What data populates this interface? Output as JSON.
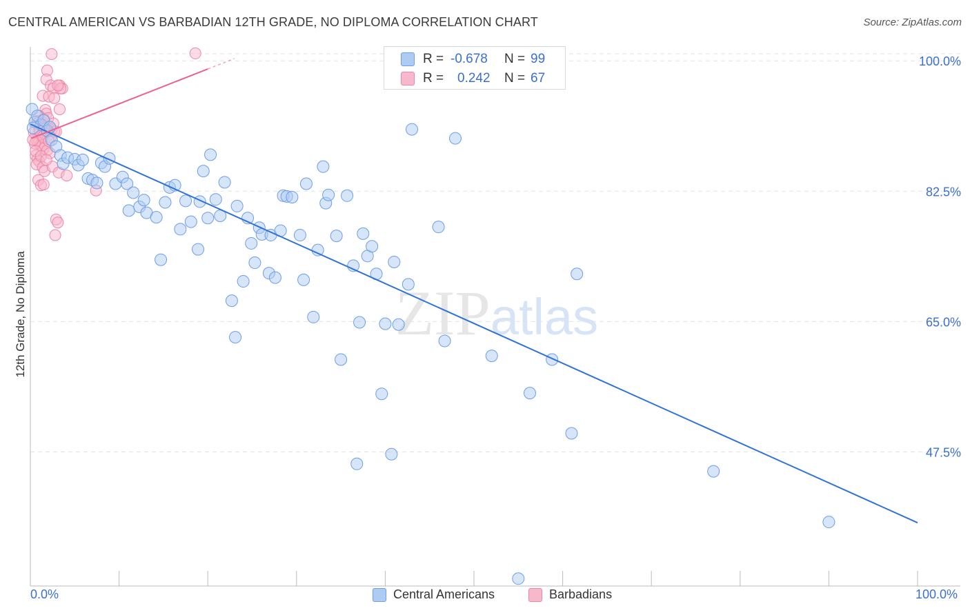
{
  "title": "CENTRAL AMERICAN VS BARBADIAN 12TH GRADE, NO DIPLOMA CORRELATION CHART",
  "source": "Source: ZipAtlas.com",
  "watermark": "ZIPatlas",
  "colors": {
    "blue_fill": "#aecbf2",
    "blue_stroke": "#6d9ee6",
    "blue_line": "#2f72d6",
    "pink_fill": "#f7b8cc",
    "pink_stroke": "#ee86a8",
    "pink_line": "#e8648f",
    "grid": "#e3e3e3",
    "tick_text": "#3a6fd0"
  },
  "legend": {
    "rows": [
      {
        "r_label": "R =",
        "r_value": "-0.678",
        "n_label": "N =",
        "n_value": "99"
      },
      {
        "r_label": "R =",
        "r_value": "0.242",
        "n_label": "N =",
        "n_value": "67"
      }
    ]
  },
  "bottom_legend": {
    "central": "Central Americans",
    "barbadian": "Barbadians"
  },
  "x_ticks": {
    "left": "0.0%",
    "right": "100.0%"
  },
  "chart_data": {
    "type": "scatter",
    "title": "CENTRAL AMERICAN VS BARBADIAN 12TH GRADE, NO DIPLOMA CORRELATION CHART",
    "xlabel": "",
    "ylabel": "12th Grade, No Diploma",
    "xlim": [
      0,
      100
    ],
    "ylim": [
      29.5,
      101.5
    ],
    "y_ticks": [
      {
        "value": 100.0,
        "label": "100.0%"
      },
      {
        "value": 82.5,
        "label": "82.5%"
      },
      {
        "value": 65.0,
        "label": "65.0%"
      },
      {
        "value": 47.5,
        "label": "47.5%"
      }
    ],
    "grid": true,
    "legend_position": "top-center",
    "series": [
      {
        "name": "Central Americans",
        "color": "blue",
        "r": -0.678,
        "n": 99,
        "trend": {
          "x": [
            0,
            100
          ],
          "y": [
            91.5,
            38.0
          ]
        },
        "points": [
          [
            0.2,
            93.5
          ],
          [
            0.5,
            91.8
          ],
          [
            0.8,
            92.6
          ],
          [
            1.2,
            91.4
          ],
          [
            1.5,
            92.0
          ],
          [
            1.9,
            90.6
          ],
          [
            2.2,
            91.1
          ],
          [
            2.4,
            89.4
          ],
          [
            2.9,
            88.5
          ],
          [
            3.4,
            87.3
          ],
          [
            3.7,
            86.2
          ],
          [
            4.2,
            87.0
          ],
          [
            5.0,
            86.8
          ],
          [
            5.4,
            86.0
          ],
          [
            5.9,
            86.7
          ],
          [
            6.5,
            84.2
          ],
          [
            7.0,
            84.0
          ],
          [
            7.5,
            83.6
          ],
          [
            8.0,
            86.3
          ],
          [
            8.4,
            85.8
          ],
          [
            8.9,
            86.9
          ],
          [
            9.6,
            83.5
          ],
          [
            10.4,
            84.4
          ],
          [
            10.9,
            83.5
          ],
          [
            11.1,
            79.9
          ],
          [
            11.6,
            82.3
          ],
          [
            12.3,
            80.4
          ],
          [
            12.8,
            81.3
          ],
          [
            13.1,
            79.6
          ],
          [
            14.2,
            79.0
          ],
          [
            14.7,
            73.3
          ],
          [
            15.2,
            81.0
          ],
          [
            15.7,
            83.0
          ],
          [
            16.3,
            83.3
          ],
          [
            16.9,
            77.4
          ],
          [
            17.5,
            81.2
          ],
          [
            18.1,
            78.4
          ],
          [
            18.9,
            74.7
          ],
          [
            19.1,
            81.1
          ],
          [
            19.5,
            85.2
          ],
          [
            20.0,
            78.9
          ],
          [
            20.3,
            87.4
          ],
          [
            20.9,
            81.4
          ],
          [
            21.4,
            79.2
          ],
          [
            21.9,
            83.7
          ],
          [
            22.7,
            67.8
          ],
          [
            23.1,
            62.9
          ],
          [
            23.3,
            80.5
          ],
          [
            24.0,
            70.4
          ],
          [
            24.5,
            78.9
          ],
          [
            24.9,
            75.5
          ],
          [
            25.3,
            72.9
          ],
          [
            25.8,
            77.6
          ],
          [
            26.1,
            76.7
          ],
          [
            26.9,
            71.5
          ],
          [
            27.1,
            76.6
          ],
          [
            27.6,
            70.9
          ],
          [
            28.2,
            77.2
          ],
          [
            28.5,
            81.9
          ],
          [
            28.9,
            81.8
          ],
          [
            29.5,
            81.7
          ],
          [
            30.4,
            76.6
          ],
          [
            30.8,
            70.6
          ],
          [
            31.1,
            83.5
          ],
          [
            31.9,
            65.6
          ],
          [
            32.4,
            74.6
          ],
          [
            33.0,
            85.8
          ],
          [
            33.3,
            80.9
          ],
          [
            33.6,
            82.0
          ],
          [
            34.5,
            76.5
          ],
          [
            35.0,
            59.9
          ],
          [
            35.7,
            81.9
          ],
          [
            36.4,
            72.5
          ],
          [
            36.8,
            45.9
          ],
          [
            37.1,
            64.9
          ],
          [
            37.5,
            76.8
          ],
          [
            38.0,
            73.8
          ],
          [
            38.5,
            75.1
          ],
          [
            39.0,
            71.4
          ],
          [
            39.6,
            55.3
          ],
          [
            40.0,
            64.7
          ],
          [
            40.7,
            47.2
          ],
          [
            41.0,
            73.0
          ],
          [
            41.5,
            64.6
          ],
          [
            42.6,
            70.0
          ],
          [
            43.0,
            90.8
          ],
          [
            46.0,
            77.7
          ],
          [
            46.7,
            62.4
          ],
          [
            47.9,
            89.6
          ],
          [
            52.0,
            60.4
          ],
          [
            52.6,
            101.0
          ],
          [
            56.3,
            55.4
          ],
          [
            58.8,
            59.9
          ],
          [
            61.0,
            50.0
          ],
          [
            61.6,
            71.4
          ],
          [
            77.0,
            44.9
          ],
          [
            90.0,
            38.1
          ],
          [
            55.0,
            30.5
          ],
          [
            0.3,
            91.0
          ]
        ]
      },
      {
        "name": "Barbadians",
        "color": "pink",
        "r": 0.242,
        "n": 67,
        "trend": {
          "x": [
            0.1,
            20.0
          ],
          "y": [
            89.6,
            98.9
          ]
        },
        "trend_dashed": {
          "x": [
            20.0,
            23.0
          ],
          "y": [
            98.9,
            100.3
          ]
        },
        "points": [
          [
            2.4,
            100.9
          ],
          [
            1.9,
            98.7
          ],
          [
            1.8,
            97.5
          ],
          [
            2.3,
            96.7
          ],
          [
            2.6,
            96.3
          ],
          [
            3.3,
            96.7
          ],
          [
            3.6,
            96.3
          ],
          [
            1.4,
            95.3
          ],
          [
            2.1,
            95.2
          ],
          [
            3.4,
            96.3
          ],
          [
            3.1,
            96.7
          ],
          [
            2.7,
            95.0
          ],
          [
            3.3,
            93.5
          ],
          [
            1.7,
            93.4
          ],
          [
            1.8,
            92.9
          ],
          [
            1.0,
            92.6
          ],
          [
            1.5,
            92.2
          ],
          [
            0.9,
            91.7
          ],
          [
            1.3,
            91.5
          ],
          [
            2.0,
            91.2
          ],
          [
            2.4,
            90.8
          ],
          [
            2.7,
            90.5
          ],
          [
            2.9,
            90.5
          ],
          [
            1.6,
            90.3
          ],
          [
            1.4,
            90.1
          ],
          [
            1.2,
            90.0
          ],
          [
            1.0,
            89.8
          ],
          [
            0.8,
            89.6
          ],
          [
            0.7,
            89.3
          ],
          [
            0.9,
            89.0
          ],
          [
            1.1,
            88.7
          ],
          [
            1.3,
            88.6
          ],
          [
            1.5,
            88.2
          ],
          [
            1.9,
            88.0
          ],
          [
            2.2,
            87.6
          ],
          [
            0.6,
            87.3
          ],
          [
            0.8,
            86.8
          ],
          [
            1.0,
            86.5
          ],
          [
            0.7,
            86.1
          ],
          [
            1.4,
            85.7
          ],
          [
            1.6,
            85.2
          ],
          [
            2.5,
            85.8
          ],
          [
            3.2,
            85.0
          ],
          [
            4.1,
            84.6
          ],
          [
            0.9,
            84.0
          ],
          [
            1.2,
            83.3
          ],
          [
            7.4,
            82.6
          ],
          [
            1.5,
            83.4
          ],
          [
            2.9,
            78.7
          ],
          [
            3.1,
            78.3
          ],
          [
            2.8,
            76.6
          ],
          [
            18.6,
            101.0
          ],
          [
            1.1,
            90.9
          ],
          [
            1.7,
            91.0
          ],
          [
            2.3,
            89.7
          ],
          [
            0.4,
            90.4
          ],
          [
            0.5,
            88.9
          ],
          [
            0.6,
            87.9
          ],
          [
            1.2,
            87.2
          ],
          [
            1.8,
            86.7
          ],
          [
            2.0,
            92.3
          ],
          [
            2.6,
            91.6
          ],
          [
            1.0,
            90.7
          ],
          [
            0.3,
            89.4
          ],
          [
            1.4,
            89.8
          ],
          [
            2.1,
            89.2
          ],
          [
            0.8,
            91.9
          ]
        ]
      }
    ]
  }
}
